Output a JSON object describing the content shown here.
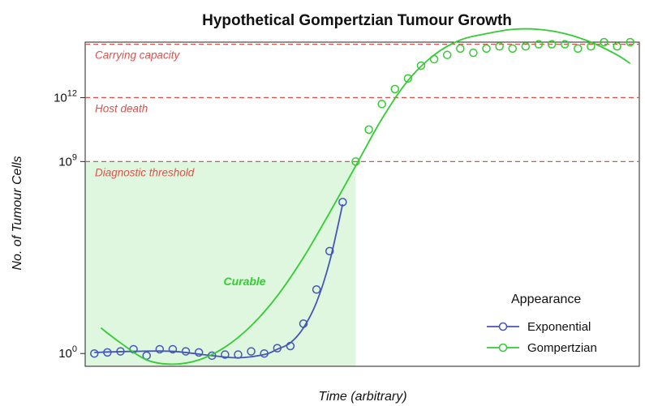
{
  "chart_data": {
    "type": "line",
    "title": "Hypothetical Gompertzian Tumour Growth",
    "xlabel": "Time (arbitrary)",
    "ylabel": "No. of Tumour Cells",
    "yscale": "log10",
    "ylim": [
      -0.6,
      14.6
    ],
    "xlim": [
      0.3,
      42.7
    ],
    "x_ticks_shown": false,
    "y_ticks": [
      {
        "value": 0,
        "label": "10",
        "sup": "0"
      },
      {
        "value": 9,
        "label": "10",
        "sup": "9"
      },
      {
        "value": 12,
        "label": "10",
        "sup": "12"
      }
    ],
    "grid": false,
    "reference_lines": [
      {
        "label": "Diagnostic threshold",
        "y": 9,
        "color": "#d9534f",
        "style": "dashed"
      },
      {
        "label": "Host death",
        "y": 12,
        "color": "#d9534f",
        "style": "dashed"
      },
      {
        "label": "Carrying capacity",
        "y": 14.5,
        "color": "#d9534f",
        "style": "dashed"
      }
    ],
    "regions": [
      {
        "label": "Curable",
        "x_range": [
          0.3,
          21
        ],
        "y_range": [
          -0.6,
          9
        ],
        "color": "#dff7df",
        "label_color": "#33cc33"
      }
    ],
    "legend": {
      "title": "Appearance",
      "position": "bottom-right"
    },
    "series": [
      {
        "name": "Exponential",
        "color": "#4455bb",
        "points": {
          "x": [
            1,
            2,
            3,
            4,
            5,
            6,
            7,
            8,
            9,
            10,
            11,
            12,
            13,
            14,
            15,
            16,
            17,
            18,
            19,
            20
          ],
          "y": [
            0.0,
            0.05,
            0.1,
            0.2,
            -0.1,
            0.2,
            0.2,
            0.1,
            0.05,
            -0.1,
            -0.05,
            -0.05,
            0.1,
            0.0,
            0.25,
            0.35,
            1.4,
            3.0,
            4.8,
            7.1
          ]
        },
        "fit": {
          "x": [
            1,
            4,
            7,
            10,
            12,
            14,
            15,
            16,
            17,
            18,
            19,
            20
          ],
          "y": [
            0.05,
            0.1,
            0.1,
            -0.1,
            -0.2,
            -0.05,
            0.2,
            0.5,
            1.2,
            2.4,
            4.3,
            7.0
          ]
        }
      },
      {
        "name": "Gompertzian",
        "color": "#33cc33",
        "points": {
          "x": [
            21,
            22,
            23,
            24,
            25,
            26,
            27,
            28,
            29,
            30,
            31,
            32,
            33,
            34,
            35,
            36,
            37,
            38,
            39,
            40,
            41,
            42
          ],
          "y": [
            9.0,
            10.5,
            11.7,
            12.4,
            12.9,
            13.5,
            13.8,
            14.0,
            14.3,
            14.1,
            14.3,
            14.4,
            14.3,
            14.4,
            14.5,
            14.5,
            14.5,
            14.3,
            14.4,
            14.6,
            14.4,
            14.6
          ]
        },
        "fit": {
          "x": [
            1.5,
            3,
            5,
            7,
            9,
            11,
            13,
            15,
            17,
            19,
            21,
            23,
            25,
            27,
            29,
            31,
            33,
            35,
            37,
            39,
            41,
            42
          ],
          "y": [
            1.2,
            0.5,
            -0.3,
            -0.5,
            -0.3,
            0.3,
            1.3,
            2.7,
            4.5,
            6.6,
            8.8,
            11.0,
            12.8,
            14.0,
            14.7,
            15.0,
            15.2,
            15.2,
            15.0,
            14.6,
            14.0,
            13.6
          ]
        }
      }
    ]
  }
}
